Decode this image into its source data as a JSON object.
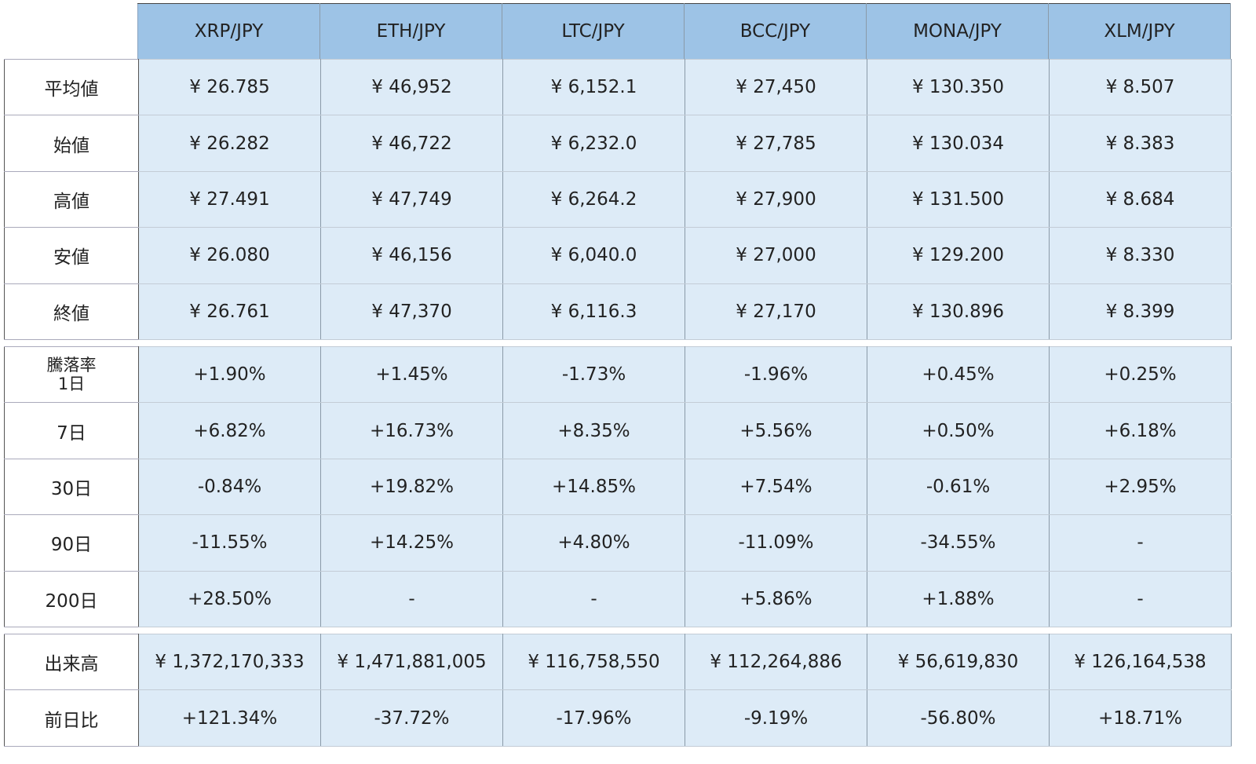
{
  "colors": {
    "header_bg": "#9dc3e6",
    "cell_bg": "#ddebf7"
  },
  "columns": [
    "XRP/JPY",
    "ETH/JPY",
    "LTC/JPY",
    "BCC/JPY",
    "MONA/JPY",
    "XLM/JPY"
  ],
  "prices": [
    {
      "label": "平均値",
      "values": [
        "¥ 26.785",
        "¥ 46,952",
        "¥ 6,152.1",
        "¥ 27,450",
        "¥ 130.350",
        "¥ 8.507"
      ]
    },
    {
      "label": "始値",
      "values": [
        "¥ 26.282",
        "¥ 46,722",
        "¥ 6,232.0",
        "¥ 27,785",
        "¥ 130.034",
        "¥ 8.383"
      ]
    },
    {
      "label": "高値",
      "values": [
        "¥ 27.491",
        "¥ 47,749",
        "¥ 6,264.2",
        "¥ 27,900",
        "¥ 131.500",
        "¥ 8.684"
      ]
    },
    {
      "label": "安値",
      "values": [
        "¥ 26.080",
        "¥ 46,156",
        "¥ 6,040.0",
        "¥ 27,000",
        "¥ 129.200",
        "¥ 8.330"
      ]
    },
    {
      "label": "終値",
      "values": [
        "¥ 26.761",
        "¥ 47,370",
        "¥ 6,116.3",
        "¥ 27,170",
        "¥ 130.896",
        "¥ 8.399"
      ]
    }
  ],
  "change": [
    {
      "label": "騰落率\n1日",
      "values": [
        "+1.90%",
        "+1.45%",
        "-1.73%",
        "-1.96%",
        "+0.45%",
        "+0.25%"
      ]
    },
    {
      "label": "7日",
      "values": [
        "+6.82%",
        "+16.73%",
        "+8.35%",
        "+5.56%",
        "+0.50%",
        "+6.18%"
      ]
    },
    {
      "label": "30日",
      "values": [
        "-0.84%",
        "+19.82%",
        "+14.85%",
        "+7.54%",
        "-0.61%",
        "+2.95%"
      ]
    },
    {
      "label": "90日",
      "values": [
        "-11.55%",
        "+14.25%",
        "+4.80%",
        "-11.09%",
        "-34.55%",
        "-"
      ]
    },
    {
      "label": "200日",
      "values": [
        "+28.50%",
        "-",
        "-",
        "+5.86%",
        "+1.88%",
        "-"
      ]
    }
  ],
  "volume": [
    {
      "label": "出来高",
      "values": [
        "¥ 1,372,170,333",
        "¥ 1,471,881,005",
        "¥ 116,758,550",
        "¥ 112,264,886",
        "¥ 56,619,830",
        "¥ 126,164,538"
      ]
    },
    {
      "label": "前日比",
      "values": [
        "+121.34%",
        "-37.72%",
        "-17.96%",
        "-9.19%",
        "-56.80%",
        "+18.71%"
      ]
    }
  ]
}
